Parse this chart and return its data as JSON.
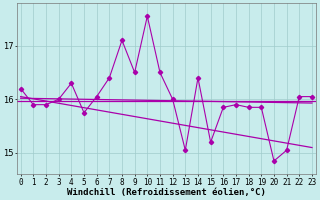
{
  "xlabel": "Windchill (Refroidissement éolien,°C)",
  "x_values": [
    0,
    1,
    2,
    3,
    4,
    5,
    6,
    7,
    8,
    9,
    10,
    11,
    12,
    13,
    14,
    15,
    16,
    17,
    18,
    19,
    20,
    21,
    22,
    23
  ],
  "y_values": [
    16.2,
    15.9,
    15.9,
    16.0,
    16.3,
    15.75,
    16.05,
    16.4,
    17.1,
    16.5,
    17.55,
    16.5,
    16.0,
    15.05,
    16.4,
    15.2,
    15.85,
    15.9,
    15.85,
    15.85,
    14.85,
    15.05,
    16.05,
    16.05
  ],
  "flat_line_y": 15.97,
  "reg_line": {
    "x0": 0,
    "x1": 23,
    "y0": 16.02,
    "y1": 15.93
  },
  "diag_line": {
    "x0": 0,
    "x1": 23,
    "y0": 16.05,
    "y1": 15.1
  },
  "line_color": "#aa00aa",
  "bg_color": "#c8ecec",
  "grid_color": "#a0cccc",
  "ylim": [
    14.6,
    17.8
  ],
  "yticks": [
    15,
    16,
    17
  ],
  "xticks": [
    0,
    1,
    2,
    3,
    4,
    5,
    6,
    7,
    8,
    9,
    10,
    11,
    12,
    13,
    14,
    15,
    16,
    17,
    18,
    19,
    20,
    21,
    22,
    23
  ],
  "tick_fontsize": 5.5,
  "label_fontsize": 6.5
}
